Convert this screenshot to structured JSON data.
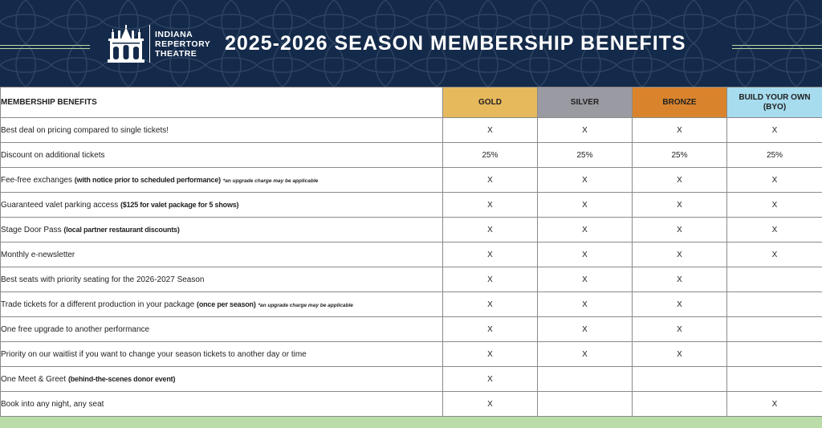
{
  "header": {
    "logo": {
      "line1": "INDIANA",
      "line2": "REPERTORY",
      "line3": "THEATRE",
      "icon": "theatre-building-icon"
    },
    "title": "2025-2026 SEASON MEMBERSHIP BENEFITS"
  },
  "colors": {
    "header_bg": "#142a4a",
    "accent_green": "#b9dca8",
    "gold": "#e6b95c",
    "silver": "#9a9aa2",
    "bronze": "#d9842d",
    "byo": "#a6dcee"
  },
  "table": {
    "benefit_header": "MEMBERSHIP BENEFITS",
    "tiers": [
      {
        "label": "GOLD"
      },
      {
        "label": "SILVER"
      },
      {
        "label": "BRONZE"
      },
      {
        "label": "BUILD YOUR OWN (BYO)"
      }
    ],
    "rows": [
      {
        "text": "Best deal on pricing compared to single tickets!",
        "bold": "",
        "note": "",
        "marks": [
          "X",
          "X",
          "X",
          "X"
        ]
      },
      {
        "text": "Discount on additional tickets",
        "bold": "",
        "note": "",
        "marks": [
          "25%",
          "25%",
          "25%",
          "25%"
        ]
      },
      {
        "text": "Fee-free exchanges",
        "bold": "(with notice prior to scheduled performance)",
        "note": "*an upgrade charge may be applicable",
        "marks": [
          "X",
          "X",
          "X",
          "X"
        ]
      },
      {
        "text": "Guaranteed valet parking access",
        "bold": "($125 for valet package for 5 shows)",
        "note": "",
        "marks": [
          "X",
          "X",
          "X",
          "X"
        ]
      },
      {
        "text": "Stage Door Pass",
        "bold": "(local partner restaurant discounts)",
        "note": "",
        "marks": [
          "X",
          "X",
          "X",
          "X"
        ]
      },
      {
        "text": "Monthly e-newsletter",
        "bold": "",
        "note": "",
        "marks": [
          "X",
          "X",
          "X",
          "X"
        ]
      },
      {
        "text": "Best seats with priority seating for the 2026-2027 Season",
        "bold": "",
        "note": "",
        "marks": [
          "X",
          "X",
          "X",
          ""
        ]
      },
      {
        "text": "Trade tickets for a different production in your package",
        "bold": "(once per season)",
        "note": "*an upgrade charge may be applicable",
        "marks": [
          "X",
          "X",
          "X",
          ""
        ]
      },
      {
        "text": "One free upgrade to another performance",
        "bold": "",
        "note": "",
        "marks": [
          "X",
          "X",
          "X",
          ""
        ]
      },
      {
        "text": "Priority on our waitlist if you want to change your season tickets to another day or time",
        "bold": "",
        "note": "",
        "marks": [
          "X",
          "X",
          "X",
          ""
        ]
      },
      {
        "text": "One Meet & Greet",
        "bold": "(behind-the-scenes donor event)",
        "note": "",
        "marks": [
          "X",
          "",
          "",
          ""
        ]
      },
      {
        "text": "Book into any night, any seat",
        "bold": "",
        "note": "",
        "marks": [
          "X",
          "",
          "",
          "X"
        ]
      }
    ]
  }
}
